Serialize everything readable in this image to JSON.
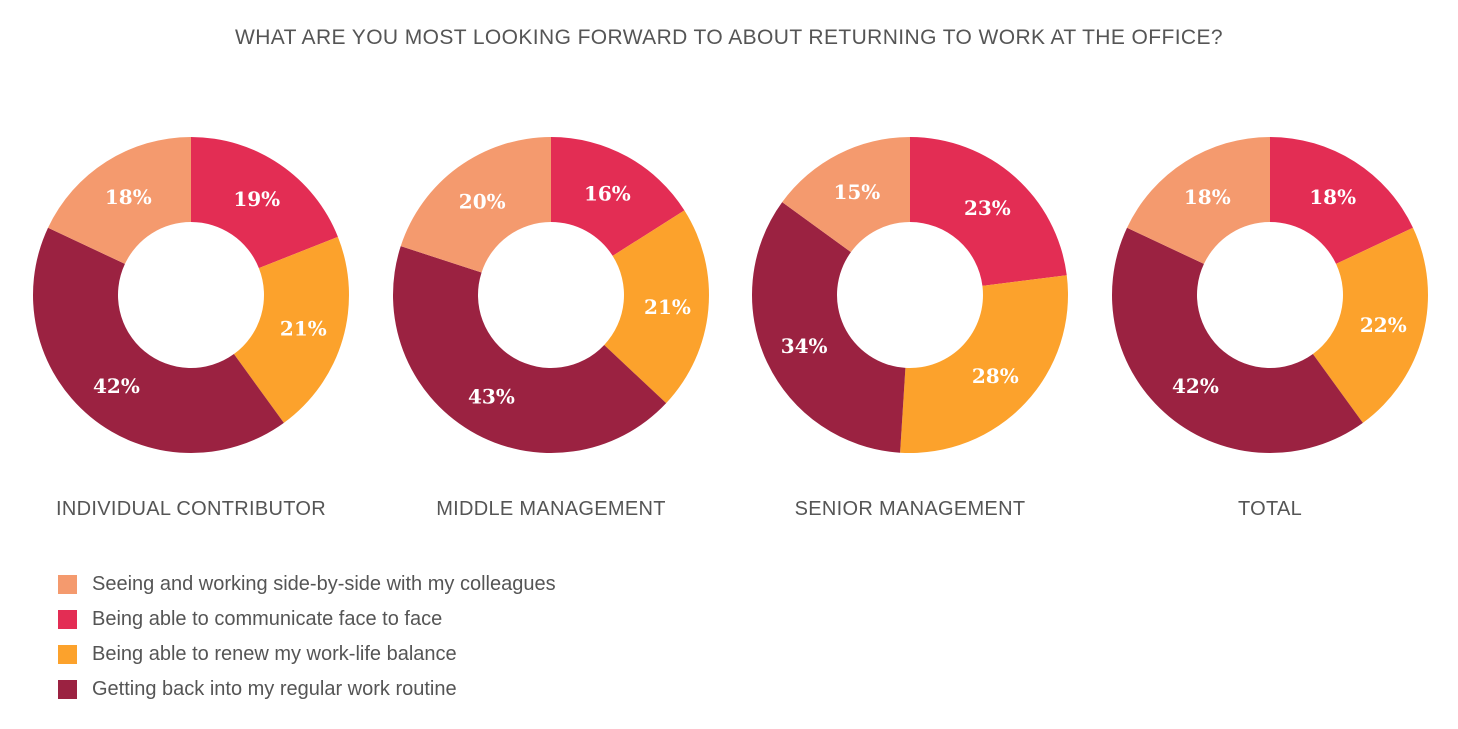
{
  "title": "WHAT ARE YOU MOST LOOKING FORWARD TO ABOUT RETURNING TO WORK AT THE OFFICE?",
  "legend": [
    {
      "label": "Seeing and working side-by-side with my colleagues",
      "color": "#F49A6E"
    },
    {
      "label": "Being able to communicate face to face",
      "color": "#E32D54"
    },
    {
      "label": "Being able to renew my work-life balance",
      "color": "#FCA22C"
    },
    {
      "label": "Getting back into my regular work routine",
      "color": "#9B2241"
    }
  ],
  "chart_data": [
    {
      "type": "pie",
      "donut": true,
      "title": "INDIVIDUAL CONTRIBUTOR",
      "categories": [
        "Seeing and working side-by-side with my colleagues",
        "Being able to communicate face to face",
        "Being able to renew my work-life balance",
        "Getting back into my regular work routine"
      ],
      "values": [
        18,
        19,
        21,
        42
      ],
      "labels": [
        "18%",
        "19%",
        "21%",
        "42%"
      ]
    },
    {
      "type": "pie",
      "donut": true,
      "title": "MIDDLE MANAGEMENT",
      "categories": [
        "Seeing and working side-by-side with my colleagues",
        "Being able to communicate face to face",
        "Being able to renew my work-life balance",
        "Getting back into my regular work routine"
      ],
      "values": [
        20,
        16,
        21,
        43
      ],
      "labels": [
        "20%",
        "16%",
        "21%",
        "43%"
      ]
    },
    {
      "type": "pie",
      "donut": true,
      "title": "SENIOR MANAGEMENT",
      "categories": [
        "Seeing and working side-by-side with my colleagues",
        "Being able to communicate face to face",
        "Being able to renew my work-life balance",
        "Getting back into my regular work routine"
      ],
      "values": [
        15,
        23,
        28,
        34
      ],
      "labels": [
        "15%",
        "23%",
        "28%",
        "34%"
      ]
    },
    {
      "type": "pie",
      "donut": true,
      "title": "TOTAL",
      "categories": [
        "Seeing and working side-by-side with my colleagues",
        "Being able to communicate face to face",
        "Being able to renew my work-life balance",
        "Getting back into my regular work routine"
      ],
      "values": [
        18,
        18,
        22,
        42
      ],
      "labels": [
        "18%",
        "18%",
        "22%",
        "42%"
      ]
    }
  ]
}
